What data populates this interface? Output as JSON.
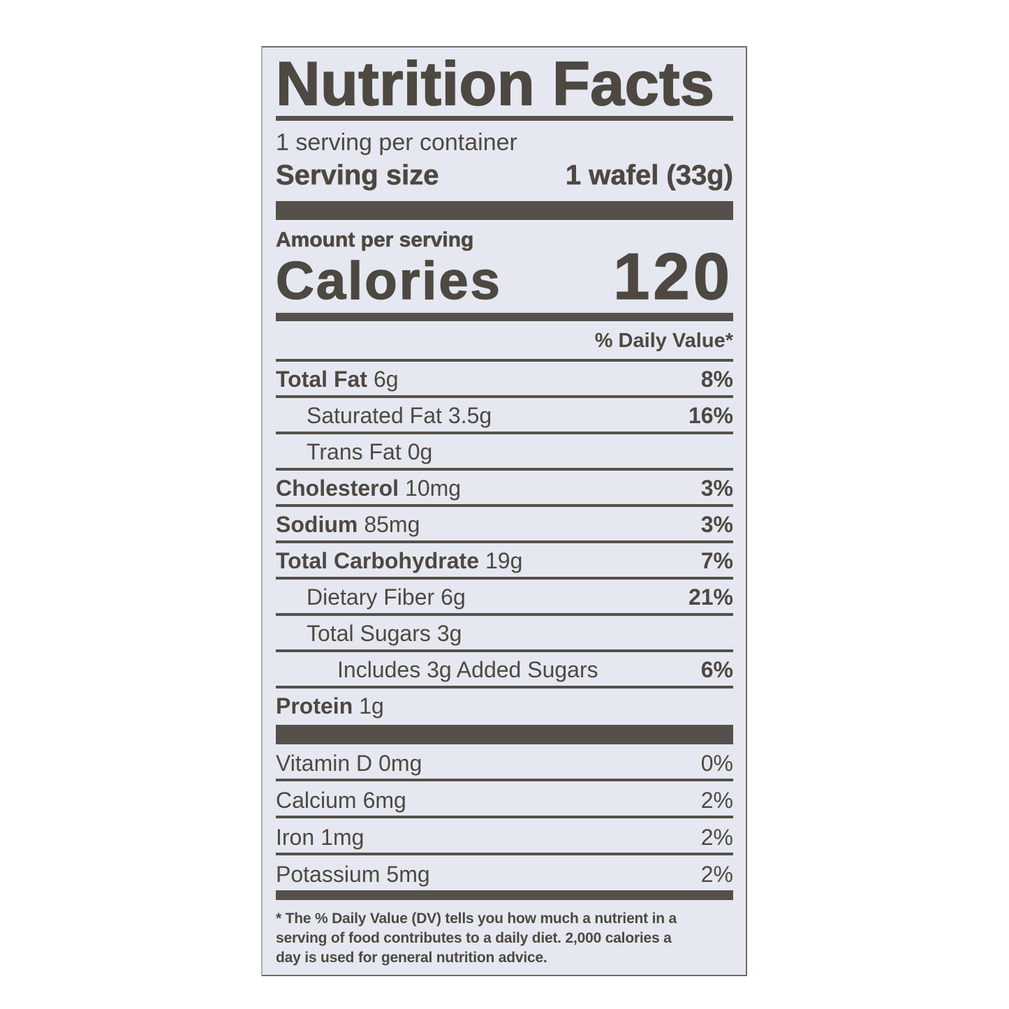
{
  "label": {
    "title": "Nutrition Facts",
    "servings_per_container": "1 serving per container",
    "serving_size_label": "Serving size",
    "serving_size_value": "1 wafel (33g)",
    "amount_per_serving": "Amount per serving",
    "calories_label": "Calories",
    "calories_value": "120",
    "daily_value_header": "% Daily Value*",
    "nutrients": [
      {
        "name": "Total Fat",
        "amount": "6g",
        "dv": "8%"
      },
      {
        "name": "Saturated Fat",
        "amount": "3.5g",
        "dv": "16%"
      },
      {
        "name": "Trans Fat",
        "amount": "0g",
        "dv": ""
      },
      {
        "name": "Cholesterol",
        "amount": "10mg",
        "dv": "3%"
      },
      {
        "name": "Sodium",
        "amount": "85mg",
        "dv": "3%"
      },
      {
        "name": "Total Carbohydrate",
        "amount": "19g",
        "dv": "7%"
      },
      {
        "name": "Dietary Fiber",
        "amount": "6g",
        "dv": "21%"
      },
      {
        "name": "Total Sugars",
        "amount": "3g",
        "dv": ""
      },
      {
        "name": "Includes 3g Added Sugars",
        "amount": "",
        "dv": "6%"
      },
      {
        "name": "Protein",
        "amount": "1g",
        "dv": ""
      }
    ],
    "vitamins": [
      {
        "name": "Vitamin D",
        "amount": "0mg",
        "dv": "0%"
      },
      {
        "name": "Calcium",
        "amount": "6mg",
        "dv": "2%"
      },
      {
        "name": "Iron",
        "amount": "1mg",
        "dv": "2%"
      },
      {
        "name": "Potassium",
        "amount": "5mg",
        "dv": "2%"
      }
    ],
    "footnote_lines": [
      "* The % Daily Value (DV) tells you how much a nutrient in a",
      "serving of food contributes to a daily diet. 2,000 calories a",
      "day is used for general nutrition advice."
    ],
    "colors": {
      "ink": "#4e4842",
      "bar": "#56504a",
      "background": "#e5e8f0"
    }
  }
}
